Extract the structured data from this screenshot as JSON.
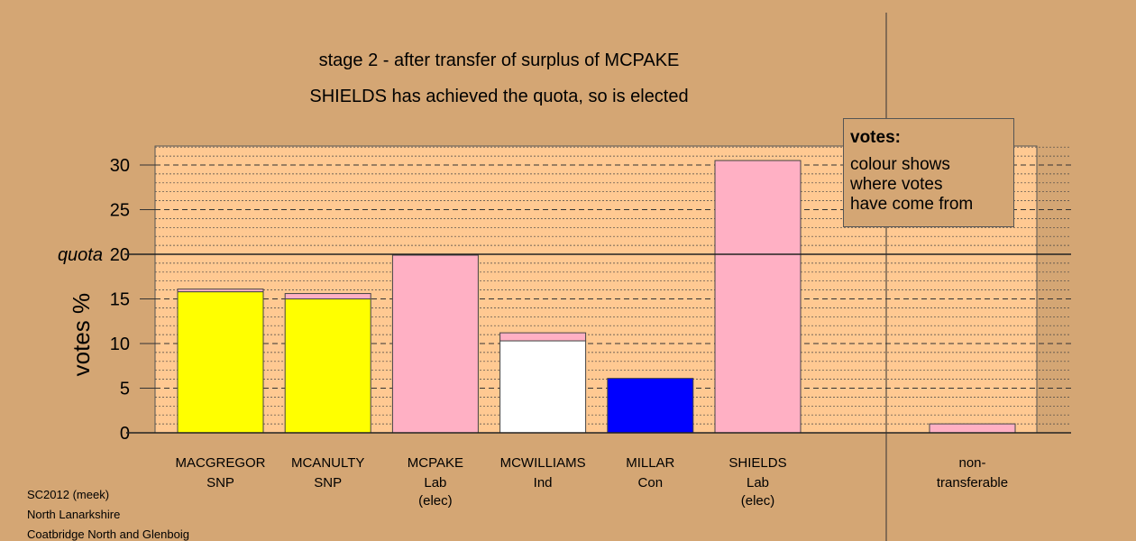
{
  "chart_data": {
    "type": "bar",
    "title": "stage 2 - after transfer of surplus of MCPAKE",
    "subtitle": "SHIELDS has achieved the quota, so is elected",
    "ylabel": "votes %",
    "ylim": [
      0,
      32
    ],
    "yticks": [
      0,
      5,
      10,
      15,
      20,
      25,
      30
    ],
    "quota": 20,
    "quota_label": "quota",
    "grid": true,
    "candidates": [
      {
        "name": "MACGREGOR",
        "party": "SNP",
        "elected": "",
        "segments": [
          {
            "value": 15.8,
            "color": "#ffff00"
          },
          {
            "value": 0.3,
            "color": "#ffb0c4"
          }
        ]
      },
      {
        "name": "MCANULTY",
        "party": "SNP",
        "elected": "",
        "segments": [
          {
            "value": 15.0,
            "color": "#ffff00"
          },
          {
            "value": 0.6,
            "color": "#ffb0c4"
          }
        ]
      },
      {
        "name": "MCPAKE",
        "party": "Lab",
        "elected": "(elec)",
        "segments": [
          {
            "value": 19.9,
            "color": "#ffb0c4"
          }
        ]
      },
      {
        "name": "MCWILLIAMS",
        "party": "Ind",
        "elected": "",
        "segments": [
          {
            "value": 10.3,
            "color": "#ffffff"
          },
          {
            "value": 0.9,
            "color": "#ffb0c4"
          }
        ]
      },
      {
        "name": "MILLAR",
        "party": "Con",
        "elected": "",
        "segments": [
          {
            "value": 6.1,
            "color": "#0000ff"
          }
        ]
      },
      {
        "name": "SHIELDS",
        "party": "Lab",
        "elected": "(elec)",
        "segments": [
          {
            "value": 20.0,
            "color": "#ffb0c4"
          },
          {
            "value": 10.5,
            "color": "#ffb0c4"
          }
        ]
      }
    ],
    "nontransferable": {
      "label_line1": "non-",
      "label_line2": "transferable",
      "value": 1.0,
      "color": "#ffb0c4"
    }
  },
  "legend": {
    "title": "votes:",
    "line1": "colour shows",
    "line2": "where votes",
    "line3": "have come from"
  },
  "footer": {
    "line1": "SC2012 (meek)",
    "line2": "North Lanarkshire",
    "line3": "Coatbridge North and Glenboig"
  }
}
